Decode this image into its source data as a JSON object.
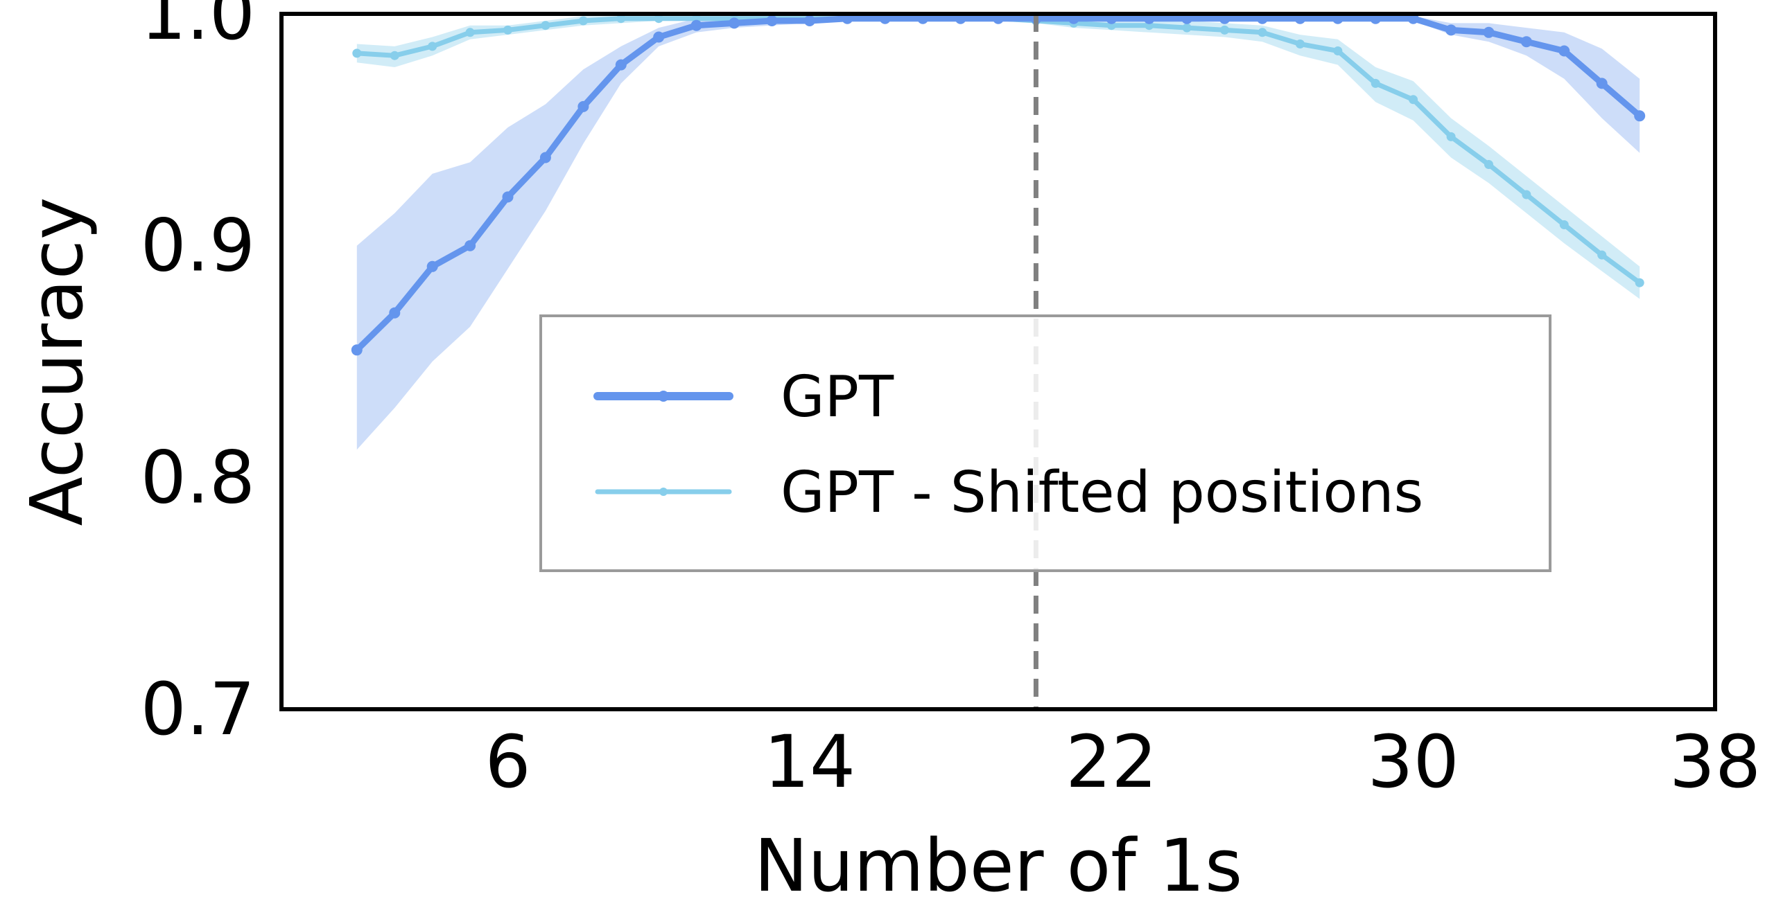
{
  "chart_data": {
    "type": "line",
    "title": "",
    "xlabel": "Number of 1s",
    "ylabel": "Accuracy",
    "xlim": [
      0,
      38
    ],
    "ylim": [
      0.7,
      1.0
    ],
    "x_ticks": [
      6,
      14,
      22,
      30,
      38
    ],
    "x_tick_labels": [
      "6",
      "14",
      "22",
      "30",
      "38"
    ],
    "y_ticks": [
      0.7,
      0.8,
      0.9,
      1.0
    ],
    "y_tick_labels": [
      "0.7",
      "0.8",
      "0.9",
      "1.0"
    ],
    "grid": false,
    "legend_position": "center",
    "reference_line": {
      "x": 20,
      "style": "dashed",
      "color": "#808080"
    },
    "x": [
      2,
      3,
      4,
      5,
      6,
      7,
      8,
      9,
      10,
      11,
      12,
      13,
      14,
      15,
      16,
      17,
      18,
      19,
      20,
      21,
      22,
      23,
      24,
      25,
      26,
      27,
      28,
      29,
      30,
      31,
      32,
      33,
      34,
      35,
      36
    ],
    "series": [
      {
        "name": "GPT",
        "color": "#6495ED",
        "values": [
          0.855,
          0.871,
          0.891,
          0.9,
          0.921,
          0.938,
          0.96,
          0.978,
          0.99,
          0.995,
          0.996,
          0.997,
          0.997,
          0.998,
          0.998,
          0.998,
          0.998,
          0.998,
          0.998,
          0.998,
          0.998,
          0.998,
          0.998,
          0.998,
          0.998,
          0.998,
          0.998,
          0.998,
          0.998,
          0.993,
          0.992,
          0.988,
          0.984,
          0.97,
          0.956
        ],
        "band_lower": [
          0.812,
          0.83,
          0.85,
          0.865,
          0.89,
          0.915,
          0.944,
          0.97,
          0.986,
          0.992,
          0.994,
          0.995,
          0.996,
          0.997,
          0.997,
          0.997,
          0.997,
          0.997,
          0.997,
          0.997,
          0.997,
          0.997,
          0.997,
          0.997,
          0.997,
          0.997,
          0.997,
          0.997,
          0.997,
          0.991,
          0.988,
          0.982,
          0.972,
          0.955,
          0.94
        ],
        "band_upper": [
          0.9,
          0.914,
          0.931,
          0.936,
          0.951,
          0.961,
          0.976,
          0.986,
          0.994,
          0.998,
          0.999,
          0.999,
          0.999,
          0.999,
          0.999,
          0.999,
          0.999,
          0.999,
          0.999,
          0.999,
          0.999,
          0.999,
          0.999,
          0.999,
          0.999,
          0.999,
          0.999,
          0.999,
          0.999,
          0.996,
          0.996,
          0.994,
          0.992,
          0.985,
          0.972
        ]
      },
      {
        "name": "GPT - Shifted positions",
        "color": "#87CEEB",
        "values": [
          0.983,
          0.982,
          0.986,
          0.992,
          0.993,
          0.995,
          0.997,
          0.998,
          0.998,
          0.998,
          0.998,
          0.998,
          0.998,
          0.998,
          0.998,
          0.998,
          0.998,
          0.998,
          0.997,
          0.996,
          0.995,
          0.995,
          0.994,
          0.993,
          0.992,
          0.987,
          0.984,
          0.97,
          0.963,
          0.947,
          0.935,
          0.922,
          0.909,
          0.896,
          0.884
        ],
        "band_lower": [
          0.979,
          0.977,
          0.982,
          0.989,
          0.991,
          0.993,
          0.995,
          0.996,
          0.997,
          0.997,
          0.997,
          0.997,
          0.997,
          0.997,
          0.997,
          0.997,
          0.997,
          0.997,
          0.996,
          0.994,
          0.993,
          0.992,
          0.991,
          0.99,
          0.988,
          0.982,
          0.978,
          0.962,
          0.954,
          0.938,
          0.927,
          0.914,
          0.901,
          0.889,
          0.877
        ],
        "band_upper": [
          0.987,
          0.986,
          0.99,
          0.995,
          0.995,
          0.997,
          0.999,
          0.999,
          0.999,
          0.999,
          0.999,
          0.999,
          0.999,
          0.999,
          0.999,
          0.999,
          0.999,
          0.999,
          0.999,
          0.998,
          0.997,
          0.997,
          0.997,
          0.996,
          0.995,
          0.991,
          0.989,
          0.977,
          0.971,
          0.955,
          0.943,
          0.93,
          0.917,
          0.904,
          0.891
        ]
      }
    ]
  }
}
